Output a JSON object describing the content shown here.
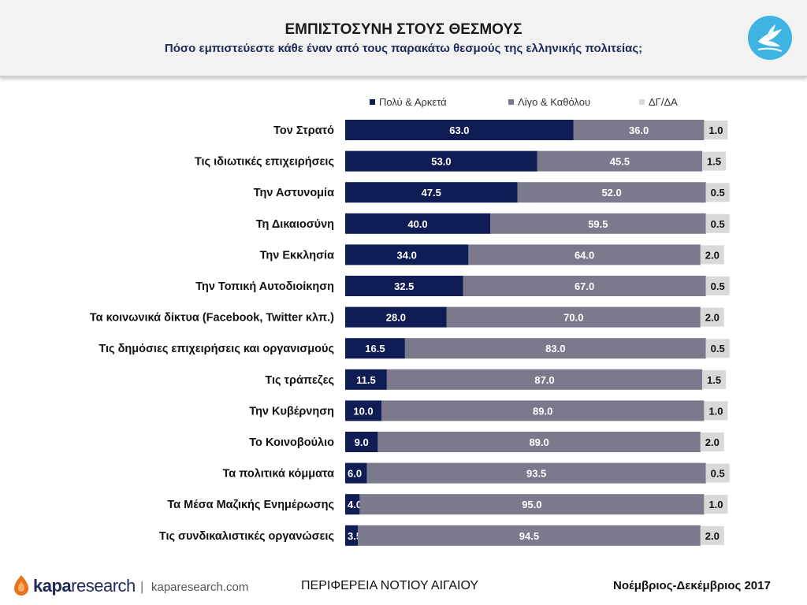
{
  "header": {
    "title": "ΕΜΠΙΣΤΟΣΥΝΗ ΣΤΟΥΣ ΘΕΣΜΟΥΣ",
    "subtitle": "Πόσο εμπιστεύεστε κάθε έναν από τους παρακάτω θεσμούς της ελληνικής πολιτείας;",
    "logo_icon": "dove-icon"
  },
  "chart_data": {
    "type": "bar",
    "orientation": "horizontal",
    "stacked": true,
    "legend_position": "top",
    "xlim": [
      0,
      100
    ],
    "categories": [
      "Τον Στρατό",
      "Τις ιδιωτικές επιχειρήσεις",
      "Την Αστυνομία",
      "Τη Δικαιοσύνη",
      "Την Εκκλησία",
      "Την Τοπική Αυτοδιοίκηση",
      "Τα κοινωνικά δίκτυα (Facebook, Twitter κλπ.)",
      "Τις δημόσιες επιχειρήσεις και οργανισμούς",
      "Τις τράπεζες",
      "Την Κυβέρνηση",
      "Το Κοινοβούλιο",
      "Τα πολιτικά κόμματα",
      "Τα Μέσα Μαζικής Ενημέρωσης",
      "Τις συνδικαλιστικές οργανώσεις"
    ],
    "series": [
      {
        "name": "Πολύ & Αρκετά",
        "color": "#0f1d54",
        "values": [
          63.0,
          53.0,
          47.5,
          40.0,
          34.0,
          32.5,
          28.0,
          16.5,
          11.5,
          10.0,
          9.0,
          6.0,
          4.0,
          3.5
        ],
        "labels": [
          "63.0",
          "53.0",
          "47.5",
          "40.0",
          "34.0",
          "32.5",
          "28.0",
          "16.5",
          "11.5",
          "10.0",
          "9.0",
          "6.0",
          "4.0",
          "3.5"
        ]
      },
      {
        "name": "Λίγο & Καθόλου",
        "color": "#7b7a8c",
        "values": [
          36.0,
          45.5,
          52.0,
          59.5,
          64.0,
          67.0,
          70.0,
          83.0,
          87.0,
          89.0,
          89.0,
          93.5,
          95.0,
          94.5
        ],
        "labels": [
          "36.0",
          "45.5",
          "52.0",
          "59.5",
          "64.0",
          "67.0",
          "70.0",
          "83.0",
          "87.0",
          "89.0",
          "89.0",
          "93.5",
          "95.0",
          "94.5"
        ]
      },
      {
        "name": "ΔΓ/ΔΑ",
        "color": "#d9d9d9",
        "values": [
          1.0,
          1.5,
          0.5,
          0.5,
          2.0,
          0.5,
          2.0,
          0.5,
          1.5,
          1.0,
          2.0,
          0.5,
          1.0,
          2.0
        ],
        "labels": [
          "1.0",
          "1.5",
          "0.5",
          "0.5",
          "2.0",
          "0.5",
          "2.0",
          "0.5",
          "1.5",
          "1.0",
          "2.0",
          "0.5",
          "1.0",
          "2.0"
        ]
      }
    ]
  },
  "footer": {
    "brand_strong": "kapa",
    "brand_light": "research",
    "separator": "|",
    "url": "kaparesearch.com",
    "region": "ΠΕΡΙΦΕΡΕΙΑ ΝΟΤΙΟΥ ΑΙΓΑΙΟΥ",
    "date": "Νοέμβριος-Δεκέμβριος 2017",
    "logo_icon": "kapa-logo-icon"
  }
}
